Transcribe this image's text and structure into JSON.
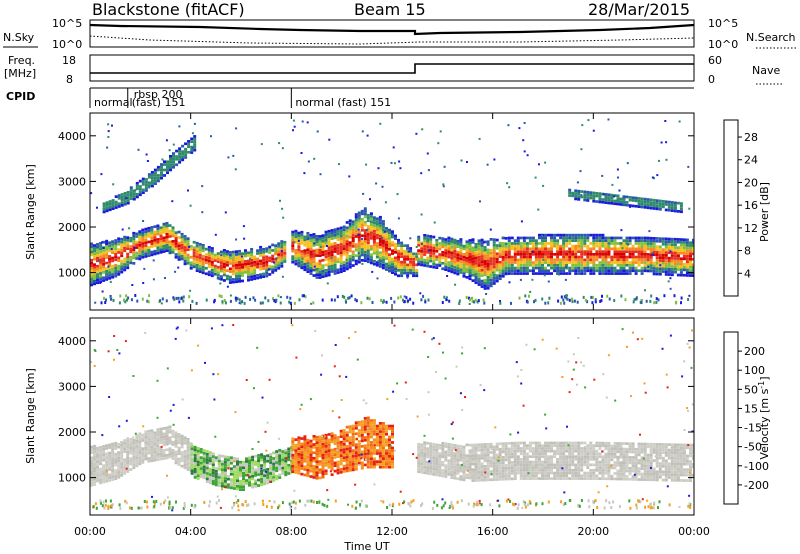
{
  "header": {
    "title": "Blackstone (fitACF)",
    "beam": "Beam 15",
    "date": "28/Mar/2015"
  },
  "top_panel": {
    "left_label": "N.Sky",
    "right_label": "N.Search",
    "left_ticks": [
      "10^5",
      "10^0"
    ],
    "right_ticks": [
      "10^5",
      "10^0"
    ]
  },
  "freq_panel": {
    "left_label": "Freq.",
    "left_unit": "[MHz]",
    "left_ticks": [
      "18",
      "8"
    ],
    "right_label": "Nave",
    "right_ticks": [
      "60",
      "0"
    ]
  },
  "cpid": {
    "label": "CPID",
    "segments": [
      {
        "start_h": 0,
        "end_h": 1.5,
        "line1": "",
        "line2": "normal"
      },
      {
        "start_h": 1.5,
        "end_h": 8.0,
        "line1": "rbsp 200",
        "line2": "(fast) 151"
      },
      {
        "start_h": 8.0,
        "end_h": 24.0,
        "line1": "",
        "line2": "normal (fast)  151"
      }
    ]
  },
  "chart_data": [
    {
      "type": "heatmap",
      "panel": "power",
      "ylabel": "Slant Range [km]",
      "xlabel": "",
      "xlim": [
        0,
        24
      ],
      "ylim": [
        180,
        4500
      ],
      "yticks": [
        1000,
        2000,
        3000,
        4000
      ],
      "colorbar": {
        "label": "Power [dB]",
        "ticks": [
          "4",
          "8",
          "12",
          "16",
          "20",
          "24",
          "28"
        ],
        "range": [
          0,
          31
        ],
        "colors": [
          "#1a1adc",
          "#2c57b0",
          "#2e8a6a",
          "#7fc040",
          "#f4c020",
          "#f58a20",
          "#e83020",
          "#d80000"
        ]
      },
      "bands": [
        {
          "x": [
            0.0,
            1.0,
            2.0,
            3.0,
            4.0,
            4.8,
            5.5,
            6.2,
            7.0,
            7.8
          ],
          "lo": [
            700,
            900,
            1300,
            1450,
            1050,
            900,
            750,
            800,
            900,
            1200
          ],
          "hi": [
            1600,
            1700,
            1900,
            2100,
            1700,
            1500,
            1450,
            1500,
            1550,
            1700
          ]
        },
        {
          "x": [
            8.0,
            9.0,
            10.0,
            10.8,
            11.5,
            12.2,
            13.0
          ],
          "lo": [
            1200,
            850,
            1000,
            1250,
            1100,
            900,
            900
          ],
          "hi": [
            1900,
            1800,
            2000,
            2400,
            2200,
            1700,
            1400
          ]
        },
        {
          "x": [
            13.0,
            14.0,
            15.0,
            15.7,
            16.5,
            18.0,
            20.0,
            22.0,
            24.0
          ],
          "lo": [
            1150,
            1050,
            850,
            600,
            950,
            950,
            950,
            950,
            900
          ],
          "hi": [
            1800,
            1750,
            1700,
            1700,
            1750,
            1800,
            1800,
            1750,
            1700
          ]
        },
        {
          "x": [
            0.5,
            1.5,
            2.5,
            3.3,
            4.2
          ],
          "lo": [
            2300,
            2500,
            2900,
            3300,
            3700
          ],
          "hi": [
            2500,
            2800,
            3200,
            3600,
            4000
          ]
        },
        {
          "x": [
            19.0,
            20.5,
            22.0,
            23.5
          ],
          "lo": [
            2600,
            2500,
            2400,
            2300
          ],
          "hi": [
            2800,
            2700,
            2600,
            2500
          ]
        }
      ]
    },
    {
      "type": "heatmap",
      "panel": "velocity",
      "ylabel": "Slant Range [km]",
      "xlabel": "Time UT",
      "xlim": [
        0,
        24
      ],
      "ylim": [
        180,
        4500
      ],
      "yticks": [
        1000,
        2000,
        3000,
        4000
      ],
      "xticks": [
        "00:00",
        "04:00",
        "08:00",
        "12:00",
        "16:00",
        "20:00",
        "00:00"
      ],
      "colorbar": {
        "label": "Velocity [m s^-1]",
        "ticks": [
          "200",
          "100",
          "50",
          "15",
          "-15",
          "-50",
          "-100",
          "-200"
        ],
        "colors": [
          "#1a1adc",
          "#2e7b46",
          "#3da43a",
          "#9ddc5a",
          "#c8c8c0",
          "#f5a020",
          "#f56a10",
          "#e82010",
          "#d80000"
        ]
      },
      "bands": [
        {
          "x": [
            0.0,
            1.0,
            2.0,
            3.0,
            4.0
          ],
          "lo": [
            800,
            950,
            1300,
            1400,
            1100
          ],
          "hi": [
            1650,
            1750,
            1950,
            2150,
            1750
          ],
          "kind": "gray"
        },
        {
          "x": [
            4.0,
            5.0,
            6.0,
            7.0,
            8.0
          ],
          "lo": [
            1000,
            800,
            700,
            850,
            1100
          ],
          "hi": [
            1700,
            1500,
            1400,
            1500,
            1650
          ],
          "kind": "green"
        },
        {
          "x": [
            8.0,
            9.0,
            10.0,
            11.0,
            12.0
          ],
          "lo": [
            1100,
            950,
            1100,
            1200,
            1200
          ],
          "hi": [
            1850,
            1900,
            2050,
            2300,
            2100
          ],
          "kind": "orange"
        },
        {
          "x": [
            13.0,
            15.0,
            17.0,
            20.0,
            24.0
          ],
          "lo": [
            1100,
            900,
            950,
            950,
            900
          ],
          "hi": [
            1750,
            1700,
            1750,
            1750,
            1700
          ],
          "kind": "gray"
        }
      ]
    }
  ]
}
